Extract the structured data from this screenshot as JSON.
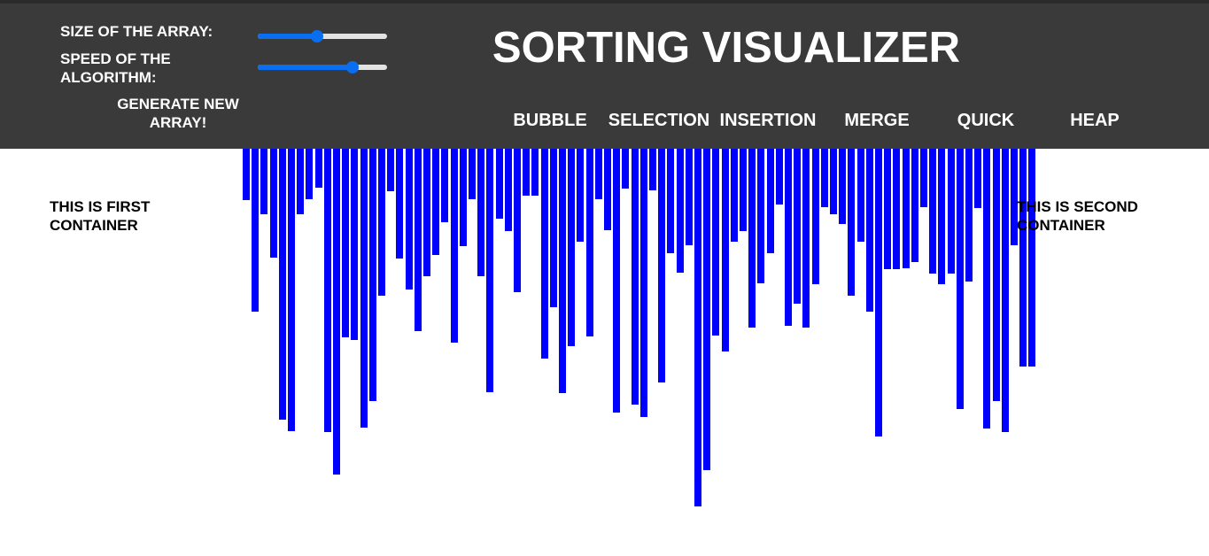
{
  "header": {
    "title": "SORTING VISUALIZER",
    "size_label": "SIZE OF THE ARRAY:",
    "speed_label_line1": "SPEED OF THE",
    "speed_label_line2": "ALGORITHM:",
    "generate_line1": "GENERATE NEW",
    "generate_line2": "ARRAY!",
    "size_slider_value": 0.46,
    "speed_slider_value": 0.73,
    "algorithms": [
      "BUBBLE",
      "SELECTION",
      "INSERTION",
      "MERGE",
      "QUICK",
      "HEAP"
    ]
  },
  "left_container_line1": "THIS IS FIRST",
  "left_container_line2": "CONTAINER",
  "right_container_line1": "THIS IS SECOND",
  "right_container_line2": "CONTAINER",
  "colors": {
    "header_bg": "#3a3a3a",
    "accent": "#0a6ef0",
    "bar": "#0000ff"
  },
  "array_values": [
    58,
    184,
    74,
    123,
    306,
    319,
    74,
    57,
    44,
    320,
    368,
    213,
    216,
    315,
    285,
    166,
    48,
    124,
    159,
    206,
    144,
    120,
    83,
    219,
    110,
    57,
    144,
    275,
    79,
    93,
    162,
    53,
    53,
    237,
    179,
    276,
    223,
    105,
    212,
    57,
    92,
    298,
    45,
    289,
    303,
    47,
    264,
    118,
    140,
    109,
    404,
    363,
    211,
    229,
    105,
    93,
    202,
    152,
    118,
    63,
    200,
    175,
    202,
    153,
    66,
    74,
    85,
    166,
    105,
    184,
    325,
    136,
    136,
    135,
    128,
    66,
    141,
    153,
    141,
    294,
    150,
    67,
    316,
    285,
    320,
    109,
    246,
    246
  ]
}
